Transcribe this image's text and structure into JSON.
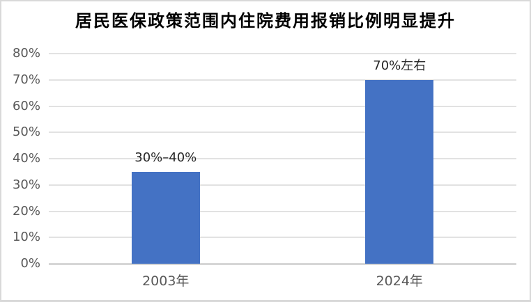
{
  "chart_data": {
    "type": "bar",
    "title": "居民医保政策范围内住院费用报销比例明显提升",
    "categories": [
      "2003年",
      "2024年"
    ],
    "values": [
      35,
      70
    ],
    "data_labels": [
      "30%–40%",
      "70%左右"
    ],
    "xlabel": "",
    "ylabel": "",
    "ylim": [
      0,
      80
    ],
    "ytick_step": 10,
    "ytick_labels": [
      "0%",
      "10%",
      "20%",
      "30%",
      "40%",
      "50%",
      "60%",
      "70%",
      "80%"
    ],
    "grid": true,
    "legend": false,
    "bar_color": "#4472C4"
  },
  "colors": {
    "bar": "#4472C4",
    "gridline": "#e2e2e2",
    "axis_line": "#d6d6d6",
    "tick_label": "#595959",
    "data_label": "#262626",
    "title": "#000000",
    "frame_border": "#d9d9d9"
  }
}
